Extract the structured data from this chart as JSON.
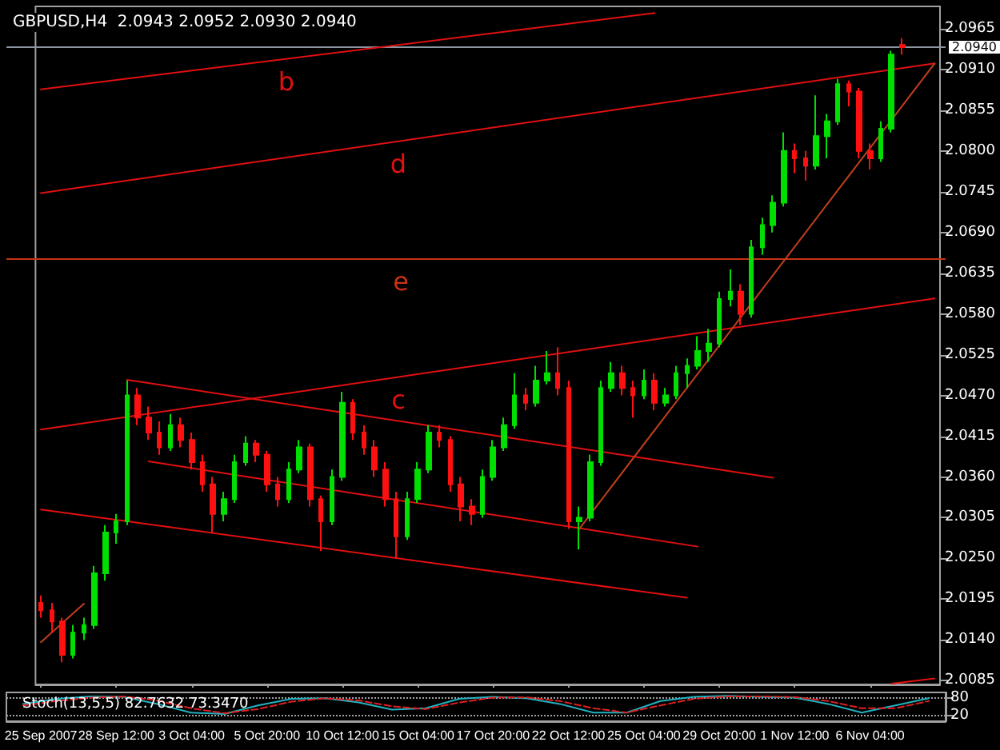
{
  "chart_data": [
    {
      "type": "candlestick",
      "title": "GBPUSD,H4  2.0943 2.0952 2.0930 2.0940",
      "categories": [
        "25 Sep 2007",
        null,
        null,
        null,
        null,
        null,
        null,
        "28 Sep 12:00",
        null,
        null,
        null,
        null,
        null,
        null,
        "3 Oct 04:00",
        null,
        null,
        null,
        null,
        null,
        null,
        "5 Oct 20:00",
        null,
        null,
        null,
        null,
        null,
        null,
        "10 Oct 12:00",
        null,
        null,
        null,
        null,
        null,
        null,
        "15 Oct 04:00",
        null,
        null,
        null,
        null,
        null,
        null,
        "17 Oct 20:00",
        null,
        null,
        null,
        null,
        null,
        null,
        "22 Oct 12:00",
        null,
        null,
        null,
        null,
        null,
        null,
        "25 Oct 04:00",
        null,
        null,
        null,
        null,
        null,
        null,
        "29 Oct 20:00",
        null,
        null,
        null,
        null,
        null,
        null,
        "1 Nov 12:00",
        null,
        null,
        null,
        null,
        null,
        null,
        "6 Nov 04:00",
        null,
        null,
        null,
        null,
        null,
        null
      ],
      "ohlc": [
        [
          2.019,
          2.02,
          2.017,
          2.018
        ],
        [
          2.018,
          2.019,
          2.015,
          2.0165
        ],
        [
          2.0165,
          2.017,
          2.011,
          2.012
        ],
        [
          2.012,
          2.016,
          2.0115,
          2.015
        ],
        [
          2.015,
          2.017,
          2.014,
          2.016
        ],
        [
          2.016,
          2.024,
          2.0155,
          2.023
        ],
        [
          2.023,
          2.0295,
          2.022,
          2.0285
        ],
        [
          2.0285,
          2.031,
          2.027,
          2.03
        ],
        [
          2.03,
          2.049,
          2.0295,
          2.047
        ],
        [
          2.047,
          2.048,
          2.043,
          2.044
        ],
        [
          2.044,
          2.0455,
          2.041,
          2.042
        ],
        [
          2.042,
          2.0435,
          2.039,
          2.04
        ],
        [
          2.04,
          2.0445,
          2.0395,
          2.043
        ],
        [
          2.043,
          2.044,
          2.04,
          2.041
        ],
        [
          2.041,
          2.042,
          2.037,
          2.038
        ],
        [
          2.038,
          2.039,
          2.034,
          2.035
        ],
        [
          2.035,
          2.036,
          2.0285,
          2.031
        ],
        [
          2.031,
          2.034,
          2.03,
          2.033
        ],
        [
          2.033,
          2.039,
          2.0325,
          2.038
        ],
        [
          2.038,
          2.0415,
          2.0375,
          2.0405
        ],
        [
          2.0405,
          2.041,
          2.038,
          2.039
        ],
        [
          2.039,
          2.0395,
          2.034,
          2.035
        ],
        [
          2.035,
          2.036,
          2.032,
          2.033
        ],
        [
          2.033,
          2.038,
          2.0325,
          2.037
        ],
        [
          2.037,
          2.041,
          2.0365,
          2.04
        ],
        [
          2.04,
          2.0405,
          2.032,
          2.033
        ],
        [
          2.033,
          2.0335,
          2.026,
          2.03
        ],
        [
          2.03,
          2.037,
          2.0295,
          2.036
        ],
        [
          2.036,
          2.0475,
          2.0355,
          2.046
        ],
        [
          2.046,
          2.0465,
          2.041,
          2.042
        ],
        [
          2.042,
          2.043,
          2.039,
          2.04
        ],
        [
          2.04,
          2.041,
          2.036,
          2.037
        ],
        [
          2.037,
          2.038,
          2.032,
          2.033
        ],
        [
          2.033,
          2.034,
          2.025,
          2.028
        ],
        [
          2.028,
          2.034,
          2.0275,
          2.033
        ],
        [
          2.033,
          2.038,
          2.0325,
          2.037
        ],
        [
          2.037,
          2.043,
          2.0365,
          2.042
        ],
        [
          2.042,
          2.043,
          2.04,
          2.041
        ],
        [
          2.041,
          2.0415,
          2.034,
          2.035
        ],
        [
          2.035,
          2.036,
          2.03,
          2.032
        ],
        [
          2.032,
          2.033,
          2.0295,
          2.031
        ],
        [
          2.031,
          2.037,
          2.0305,
          2.036
        ],
        [
          2.036,
          2.041,
          2.0355,
          2.04
        ],
        [
          2.04,
          2.044,
          2.0395,
          2.043
        ],
        [
          2.043,
          2.05,
          2.0425,
          2.047
        ],
        [
          2.047,
          2.048,
          2.045,
          2.046
        ],
        [
          2.046,
          2.051,
          2.0455,
          2.049
        ],
        [
          2.049,
          2.053,
          2.0485,
          2.05
        ],
        [
          2.05,
          2.0535,
          2.047,
          2.048
        ],
        [
          2.048,
          2.049,
          2.029,
          2.03
        ],
        [
          2.03,
          2.032,
          2.0262,
          2.0305
        ],
        [
          2.0305,
          2.039,
          2.03,
          2.038
        ],
        [
          2.038,
          2.049,
          2.0375,
          2.048
        ],
        [
          2.048,
          2.0515,
          2.0475,
          2.05
        ],
        [
          2.05,
          2.051,
          2.047,
          2.048
        ],
        [
          2.048,
          2.049,
          2.044,
          2.047
        ],
        [
          2.047,
          2.0505,
          2.0465,
          2.049
        ],
        [
          2.049,
          2.05,
          2.045,
          2.046
        ],
        [
          2.046,
          2.048,
          2.0455,
          2.047
        ],
        [
          2.047,
          2.051,
          2.0465,
          2.05
        ],
        [
          2.05,
          2.052,
          2.048,
          2.051
        ],
        [
          2.051,
          2.055,
          2.0505,
          2.053
        ],
        [
          2.053,
          2.056,
          2.0515,
          2.054
        ],
        [
          2.054,
          2.061,
          2.0535,
          2.06
        ],
        [
          2.06,
          2.064,
          2.059,
          2.061
        ],
        [
          2.061,
          2.062,
          2.0565,
          2.058
        ],
        [
          2.058,
          2.068,
          2.0575,
          2.067
        ],
        [
          2.067,
          2.071,
          2.066,
          2.07
        ],
        [
          2.07,
          2.074,
          2.069,
          2.073
        ],
        [
          2.073,
          2.0825,
          2.0725,
          2.08
        ],
        [
          2.08,
          2.081,
          2.077,
          2.079
        ],
        [
          2.079,
          2.08,
          2.076,
          2.078
        ],
        [
          2.078,
          2.0875,
          2.0775,
          2.082
        ],
        [
          2.082,
          2.085,
          2.079,
          2.084
        ],
        [
          2.084,
          2.0897,
          2.0835,
          2.089
        ],
        [
          2.089,
          2.0895,
          2.086,
          2.088
        ],
        [
          2.088,
          2.0885,
          2.079,
          2.08
        ],
        [
          2.08,
          2.081,
          2.0775,
          2.079
        ],
        [
          2.079,
          2.084,
          2.0785,
          2.083
        ],
        [
          2.083,
          2.0935,
          2.0825,
          2.093
        ],
        [
          2.0943,
          2.0952,
          2.093,
          2.094
        ],
        null,
        null,
        null
      ],
      "ylim": [
        2.008,
        2.0995
      ],
      "yticks": [
        2.0085,
        {
          "value": 2.014,
          "label": "2.0140"
        },
        2.0195,
        {
          "value": 2.025,
          "label": "2.0250"
        },
        2.0305,
        {
          "value": 2.036,
          "label": "2.0360"
        },
        2.0415,
        {
          "value": 2.047,
          "label": "2.0470"
        },
        2.0525,
        {
          "value": 2.058,
          "label": "2.0580"
        },
        2.0635,
        {
          "value": 2.069,
          "label": "2.0690"
        },
        2.0745,
        {
          "value": 2.08,
          "label": "2.0800"
        },
        2.0855,
        {
          "value": 2.091,
          "label": "2.0910"
        },
        2.0965
      ],
      "ref_lines": [
        {
          "axis": "y",
          "value": 2.0654,
          "label": "e",
          "color": "#c83214"
        },
        {
          "axis": "y",
          "value": 2.094,
          "label": "2.0940",
          "color": "#8c96a0"
        }
      ],
      "marker": "none",
      "series": [
        {
          "type": "line",
          "name": "b",
          "color": "#e01010",
          "values": [
            2.0883,
            null,
            null,
            null,
            null,
            null,
            null,
            null,
            null,
            null,
            null,
            null,
            null,
            null,
            null,
            null,
            null,
            null,
            null,
            null,
            null,
            null,
            null,
            null,
            null,
            null,
            null,
            null,
            null,
            null,
            null,
            null,
            null,
            null,
            null,
            null,
            null,
            null,
            null,
            null,
            null,
            null,
            null,
            null,
            null,
            null,
            null,
            null,
            null,
            null,
            null,
            null,
            null,
            null,
            null,
            null,
            null,
            2.0986,
            null,
            null,
            null,
            null,
            null,
            null,
            null,
            null,
            null,
            null,
            null,
            null,
            null,
            null,
            null,
            null,
            null,
            null,
            null,
            null,
            null,
            null,
            null,
            null,
            null,
            null
          ]
        },
        {
          "type": "line",
          "name": "d",
          "color": "#e01010",
          "values": [
            2.0743,
            null,
            null,
            null,
            null,
            null,
            null,
            null,
            null,
            null,
            null,
            null,
            null,
            null,
            null,
            null,
            null,
            null,
            null,
            null,
            null,
            null,
            null,
            null,
            null,
            null,
            null,
            null,
            null,
            null,
            null,
            null,
            null,
            null,
            null,
            null,
            null,
            null,
            null,
            null,
            null,
            null,
            null,
            null,
            null,
            null,
            null,
            null,
            null,
            null,
            null,
            null,
            null,
            null,
            null,
            null,
            null,
            null,
            null,
            null,
            null,
            null,
            null,
            null,
            null,
            null,
            null,
            null,
            null,
            null,
            null,
            null,
            null,
            null,
            null,
            null,
            null,
            null,
            null,
            null,
            null,
            null,
            null,
            2.0918
          ]
        },
        {
          "type": "line",
          "name": "c",
          "color": "#e01010",
          "values": [
            2.0424,
            null,
            null,
            null,
            null,
            null,
            null,
            null,
            null,
            null,
            null,
            null,
            null,
            null,
            null,
            null,
            null,
            null,
            null,
            null,
            null,
            null,
            null,
            null,
            null,
            null,
            null,
            null,
            null,
            null,
            null,
            null,
            null,
            null,
            null,
            null,
            null,
            null,
            null,
            null,
            null,
            null,
            null,
            null,
            null,
            null,
            null,
            null,
            null,
            null,
            null,
            null,
            null,
            null,
            null,
            null,
            null,
            null,
            null,
            null,
            null,
            null,
            null,
            null,
            null,
            null,
            null,
            null,
            null,
            null,
            null,
            null,
            null,
            null,
            null,
            null,
            null,
            null,
            null,
            null,
            null,
            null,
            null,
            2.0601
          ]
        },
        {
          "type": "line",
          "color": "#e01010",
          "values": [
            null,
            null,
            null,
            null,
            null,
            null,
            null,
            null,
            2.0491,
            null,
            null,
            null,
            null,
            null,
            null,
            null,
            null,
            null,
            null,
            null,
            null,
            null,
            null,
            null,
            null,
            null,
            null,
            null,
            null,
            null,
            null,
            null,
            null,
            null,
            null,
            null,
            null,
            null,
            null,
            null,
            null,
            null,
            null,
            null,
            null,
            null,
            null,
            null,
            null,
            null,
            null,
            null,
            null,
            null,
            null,
            null,
            null,
            null,
            null,
            null,
            null,
            null,
            null,
            null,
            null,
            null,
            null,
            null,
            2.0359,
            null,
            null,
            null,
            null,
            null,
            null,
            null,
            null,
            null,
            null,
            null,
            null,
            null,
            null,
            null
          ]
        },
        {
          "type": "line",
          "color": "#e01010",
          "values": [
            null,
            null,
            null,
            null,
            null,
            null,
            null,
            null,
            null,
            null,
            2.0381,
            null,
            null,
            null,
            null,
            null,
            null,
            null,
            null,
            null,
            null,
            null,
            null,
            null,
            null,
            null,
            null,
            null,
            null,
            null,
            null,
            null,
            null,
            null,
            null,
            null,
            null,
            null,
            null,
            null,
            null,
            null,
            null,
            null,
            null,
            null,
            null,
            null,
            null,
            null,
            null,
            null,
            null,
            null,
            null,
            null,
            null,
            null,
            null,
            null,
            null,
            2.0266,
            null,
            null,
            null,
            null,
            null,
            null,
            null,
            null,
            null,
            null,
            null,
            null,
            null,
            null,
            null,
            null,
            null,
            null,
            null,
            null,
            null,
            null
          ]
        },
        {
          "type": "line",
          "color": "#e01010",
          "values": [
            2.0316,
            null,
            null,
            null,
            null,
            null,
            null,
            null,
            null,
            null,
            null,
            null,
            null,
            null,
            null,
            null,
            null,
            null,
            null,
            null,
            null,
            null,
            null,
            null,
            null,
            null,
            null,
            null,
            null,
            null,
            null,
            null,
            null,
            null,
            null,
            null,
            null,
            null,
            null,
            null,
            null,
            null,
            null,
            null,
            null,
            null,
            null,
            null,
            null,
            null,
            null,
            null,
            null,
            null,
            null,
            null,
            null,
            null,
            null,
            null,
            2.0197,
            null,
            null,
            null,
            null,
            null,
            null,
            null,
            null,
            null,
            null,
            null,
            null,
            null,
            null,
            null,
            null,
            null,
            null,
            null,
            null,
            null,
            null,
            null
          ]
        },
        {
          "type": "line",
          "color": "#c0401c",
          "values": [
            null,
            null,
            null,
            null,
            null,
            null,
            null,
            null,
            null,
            null,
            null,
            null,
            null,
            null,
            null,
            null,
            null,
            null,
            null,
            null,
            null,
            null,
            null,
            null,
            null,
            null,
            null,
            null,
            null,
            null,
            null,
            null,
            null,
            null,
            null,
            null,
            null,
            null,
            null,
            null,
            null,
            null,
            null,
            null,
            null,
            null,
            null,
            null,
            null,
            null,
            2.029,
            null,
            null,
            null,
            null,
            null,
            null,
            null,
            null,
            null,
            null,
            null,
            null,
            null,
            null,
            null,
            null,
            null,
            null,
            null,
            null,
            null,
            null,
            null,
            null,
            null,
            null,
            null,
            null,
            null,
            null,
            null,
            null,
            2.0918
          ]
        },
        {
          "type": "line",
          "color": "#c0401c",
          "values": [
            2.0137,
            null,
            null,
            null,
            2.0189,
            null,
            null,
            null,
            null,
            null,
            null,
            null,
            null,
            null,
            null,
            null,
            null,
            null,
            null,
            null,
            null,
            null,
            null,
            null,
            null,
            null,
            null,
            null,
            null,
            null,
            null,
            null,
            null,
            null,
            null,
            null,
            null,
            null,
            null,
            null,
            null,
            null,
            null,
            null,
            null,
            null,
            null,
            null,
            null,
            null,
            null,
            null,
            null,
            null,
            null,
            null,
            null,
            null,
            null,
            null,
            null,
            null,
            null,
            null,
            null,
            null,
            null,
            null,
            null,
            null,
            null,
            null,
            null,
            null,
            null,
            null,
            null,
            null,
            null,
            null,
            null,
            null,
            null,
            null
          ]
        },
        {
          "type": "line",
          "color": "#e01010",
          "values": [
            null,
            null,
            null,
            null,
            null,
            null,
            null,
            null,
            null,
            null,
            null,
            null,
            null,
            null,
            null,
            null,
            null,
            null,
            null,
            null,
            null,
            null,
            null,
            null,
            null,
            null,
            null,
            null,
            null,
            null,
            null,
            null,
            null,
            null,
            null,
            null,
            null,
            null,
            null,
            null,
            null,
            null,
            null,
            null,
            null,
            null,
            null,
            null,
            null,
            null,
            null,
            null,
            null,
            null,
            null,
            null,
            null,
            null,
            null,
            null,
            null,
            null,
            null,
            null,
            null,
            null,
            null,
            null,
            null,
            null,
            null,
            null,
            null,
            null,
            null,
            null,
            null,
            null,
            null,
            2.0081,
            null,
            null,
            null,
            2.0088
          ]
        }
      ]
    },
    {
      "type": "line",
      "title": "Stoch(13,5,5) 82.7632 73.3470",
      "categories": [
        null,
        null,
        null,
        null,
        null,
        null,
        null,
        null,
        null,
        null,
        null,
        null,
        null,
        null,
        null,
        null,
        null,
        null,
        null,
        null,
        null,
        null,
        null,
        null,
        null,
        null,
        null,
        null
      ],
      "ylim": [
        0,
        100
      ],
      "yticks": [
        20,
        80
      ],
      "grid": "y",
      "tick_labels": "y",
      "marker": "none",
      "series": [
        {
          "color": "#20b2c0",
          "values": [
            60,
            78,
            86,
            85,
            60,
            30,
            25,
            55,
            78,
            80,
            65,
            40,
            45,
            78,
            85,
            80,
            60,
            30,
            30,
            70,
            85,
            88,
            85,
            82,
            60,
            30,
            55,
            80
          ]
        },
        {
          "color": "#e02020",
          "line_style": "dashed",
          "values": [
            55,
            70,
            82,
            86,
            72,
            45,
            28,
            42,
            68,
            80,
            72,
            52,
            42,
            65,
            82,
            83,
            70,
            45,
            30,
            55,
            78,
            86,
            86,
            84,
            70,
            45,
            45,
            70
          ]
        }
      ]
    }
  ]
}
